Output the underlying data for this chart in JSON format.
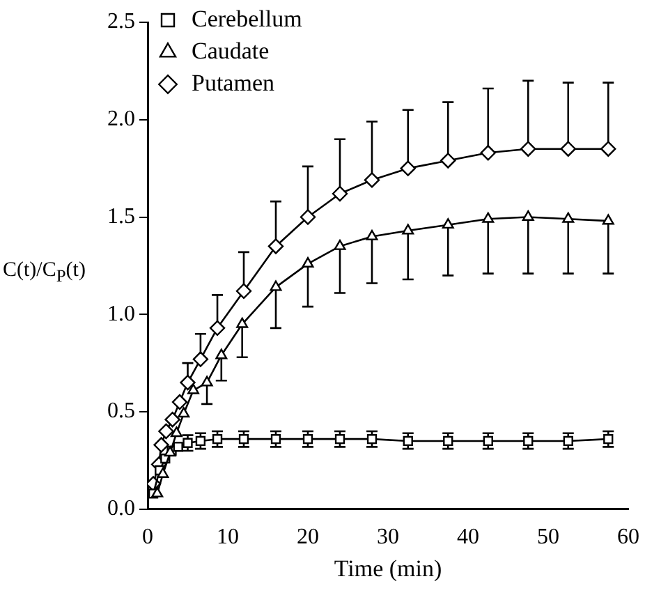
{
  "chart_data": {
    "type": "line",
    "xlabel": "Time (min)",
    "ylabel": "C(t)/C$_{P}$(t)",
    "xlim": [
      0,
      60
    ],
    "xticks": [
      0,
      10,
      20,
      30,
      40,
      50,
      60
    ],
    "ylim": [
      0,
      2.5
    ],
    "yticks": [
      {
        "value": 0,
        "label": "0.0"
      },
      {
        "value": 0.5,
        "label": "0.5"
      },
      {
        "value": 1,
        "label": "1.0"
      },
      {
        "value": 1.5,
        "label": "1.5"
      },
      {
        "value": 2,
        "label": "2.0"
      },
      {
        "value": 2.5,
        "label": "2.5"
      }
    ],
    "grid": false,
    "legend": "top left",
    "line_style": "solid",
    "series": [
      {
        "name": "Cerebellum",
        "color": "#000000",
        "marker": "square",
        "x": [
          0.7,
          1.5,
          2.2,
          3,
          3.8,
          5,
          6.6,
          8.7,
          12,
          16,
          20,
          24,
          28,
          32.5,
          37.5,
          42.5,
          47.5,
          52.5,
          57.5
        ],
        "values": [
          0.08,
          0.2,
          0.26,
          0.3,
          0.32,
          0.34,
          0.35,
          0.36,
          0.36,
          0.36,
          0.36,
          0.36,
          0.36,
          0.35,
          0.35,
          0.35,
          0.35,
          0.35,
          0.36
        ],
        "errors": [
          null,
          null,
          null,
          null,
          null,
          0.04,
          0.04,
          0.04,
          0.04,
          0.04,
          0.04,
          0.04,
          0.04,
          0.04,
          0.04,
          0.04,
          0.04,
          0.04,
          0.04
        ]
      },
      {
        "name": "Caudate",
        "color": "#000000",
        "marker": "triangle",
        "x": [
          1.2,
          1.9,
          2.8,
          3.6,
          4.5,
          5.7,
          7.4,
          9.2,
          11.8,
          16,
          20,
          24,
          28,
          32.5,
          37.5,
          42.5,
          47.5,
          52.5,
          57.5
        ],
        "values": [
          0.08,
          0.18,
          0.29,
          0.39,
          0.49,
          0.61,
          0.65,
          0.79,
          0.95,
          1.14,
          1.26,
          1.35,
          1.4,
          1.43,
          1.46,
          1.49,
          1.5,
          1.49,
          1.48
        ],
        "errors": [
          null,
          null,
          null,
          null,
          null,
          null,
          [
            0.54,
            0.65
          ],
          [
            0.66,
            0.79
          ],
          [
            0.78,
            0.95
          ],
          [
            0.93,
            1.14
          ],
          [
            1.04,
            1.26
          ],
          [
            1.11,
            1.35
          ],
          [
            1.16,
            1.4
          ],
          [
            1.18,
            1.43
          ],
          [
            1.2,
            1.46
          ],
          [
            1.21,
            1.49
          ],
          [
            1.21,
            1.5
          ],
          [
            1.21,
            1.49
          ],
          [
            1.21,
            1.48
          ]
        ]
      },
      {
        "name": "Putamen",
        "color": "#000000",
        "marker": "diamond",
        "x": [
          0.7,
          1.4,
          1.7,
          2.3,
          3.1,
          4,
          5,
          6.6,
          8.7,
          12,
          16,
          20,
          24,
          28,
          32.5,
          37.5,
          42.5,
          47.5,
          52.5,
          57.5
        ],
        "values": [
          0.13,
          0.23,
          0.33,
          0.4,
          0.46,
          0.55,
          0.65,
          0.77,
          0.93,
          1.12,
          1.35,
          1.5,
          1.62,
          1.69,
          1.75,
          1.79,
          1.83,
          1.85,
          1.85,
          1.85
        ],
        "errors": [
          null,
          null,
          null,
          null,
          null,
          null,
          [
            0.65,
            0.75
          ],
          [
            0.77,
            0.9
          ],
          [
            0.93,
            1.1
          ],
          [
            1.12,
            1.32
          ],
          [
            1.35,
            1.58
          ],
          [
            1.5,
            1.76
          ],
          [
            1.62,
            1.9
          ],
          [
            1.69,
            1.99
          ],
          [
            1.75,
            2.05
          ],
          [
            1.79,
            2.09
          ],
          [
            1.83,
            2.16
          ],
          [
            1.85,
            2.2
          ],
          [
            1.85,
            2.19
          ],
          [
            1.85,
            2.19
          ]
        ]
      }
    ]
  }
}
